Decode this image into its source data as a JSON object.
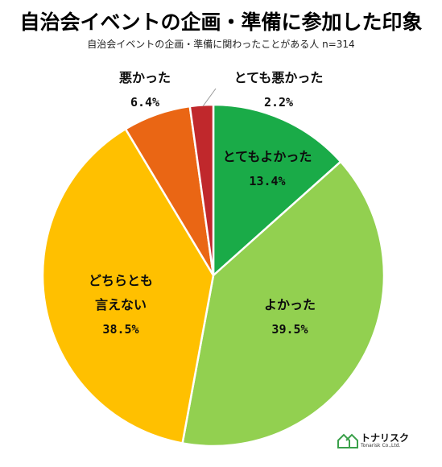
{
  "chart_data": {
    "type": "pie",
    "title": "自治会イベントの企画・準備に参加した印象",
    "subtitle": "自治会イベントの企画・準備に関わったことがある人 n=314",
    "slices": [
      {
        "label": "とてもよかった",
        "value": 13.4,
        "value_label": "13.4%",
        "color": "#1aab48"
      },
      {
        "label": "よかった",
        "value": 39.5,
        "value_label": "39.5%",
        "color": "#92d050"
      },
      {
        "label": "どちらとも言えない",
        "value": 38.5,
        "value_label": "38.5%",
        "color": "#ffc000"
      },
      {
        "label": "悪かった",
        "value": 6.4,
        "value_label": "6.4%",
        "color": "#ea6614"
      },
      {
        "label": "とても悪かった",
        "value": 2.2,
        "value_label": "2.2%",
        "color": "#c0282c"
      }
    ],
    "start_angle_deg": 0,
    "direction": "clockwise"
  },
  "logo": {
    "name": "トナリスク",
    "sub": "Tonarisk Co.,Ltd."
  }
}
